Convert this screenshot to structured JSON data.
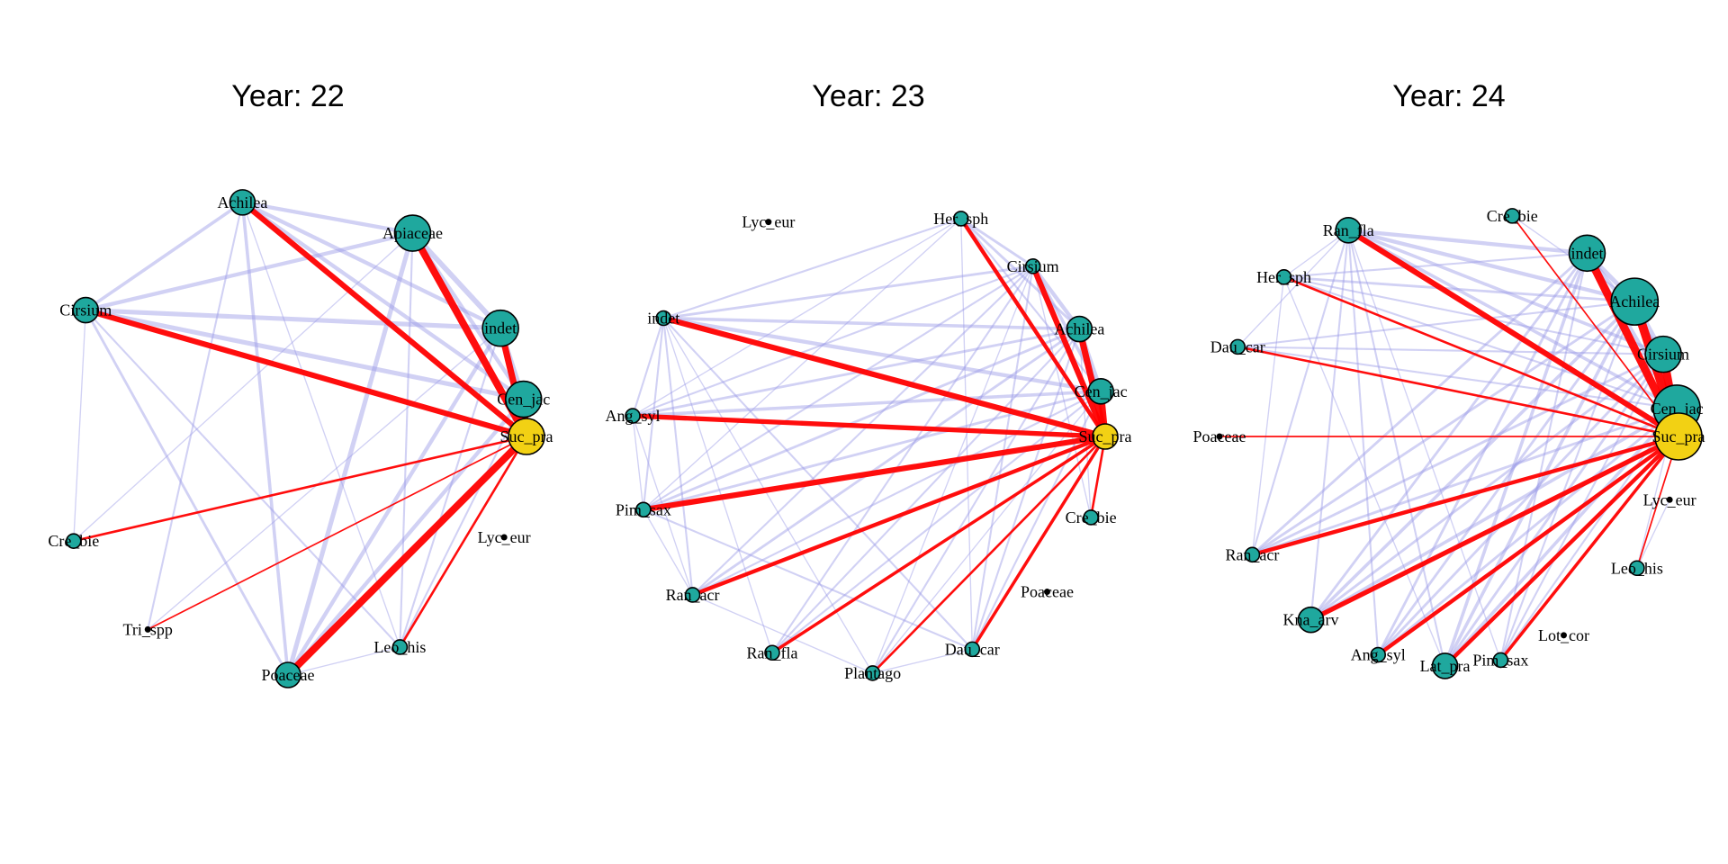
{
  "colors": {
    "background": "#ffffff",
    "edge_weak": "#9a9ae6",
    "edge_focal": "#ff0000",
    "node_fill": "#1fa89e",
    "node_focal_fill": "#f2d114",
    "node_stroke": "#000000"
  },
  "panels": [
    {
      "title": "Year: 22",
      "focal": "Suc_pra",
      "nodes": [
        {
          "id": "Apiaceae",
          "label": "Apiaceae",
          "size": 3
        },
        {
          "id": "indet",
          "label": "indet",
          "size": 3
        },
        {
          "id": "Achilea",
          "label": "Achilea",
          "size": 2
        },
        {
          "id": "Cen_jac",
          "label": "Cen_jac",
          "size": 3
        },
        {
          "id": "Cirsium",
          "label": "Cirsium",
          "size": 2
        },
        {
          "id": "Suc_pra",
          "label": "Suc_pra",
          "size": 3
        },
        {
          "id": "Cre_bie",
          "label": "Cre_bie",
          "size": 1
        },
        {
          "id": "Lyc_eur",
          "label": "Lyc_eur",
          "size": 0
        },
        {
          "id": "Tri_spp",
          "label": "Tri_spp",
          "size": 0
        },
        {
          "id": "Leo_his",
          "label": "Leo_his",
          "size": 1
        },
        {
          "id": "Poaceae",
          "label": "Poaceae",
          "size": 2
        }
      ],
      "edges": [
        {
          "a": "Apiaceae",
          "b": "Suc_pra",
          "w": 8
        },
        {
          "a": "indet",
          "b": "Suc_pra",
          "w": 7
        },
        {
          "a": "Achilea",
          "b": "Suc_pra",
          "w": 6
        },
        {
          "a": "Cen_jac",
          "b": "Suc_pra",
          "w": 7
        },
        {
          "a": "Cirsium",
          "b": "Suc_pra",
          "w": 6
        },
        {
          "a": "Poaceae",
          "b": "Suc_pra",
          "w": 8
        },
        {
          "a": "Cre_bie",
          "b": "Suc_pra",
          "w": 2
        },
        {
          "a": "Tri_spp",
          "b": "Suc_pra",
          "w": 1
        },
        {
          "a": "Leo_his",
          "b": "Suc_pra",
          "w": 2
        },
        {
          "a": "Apiaceae",
          "b": "indet",
          "w": 7
        },
        {
          "a": "Apiaceae",
          "b": "Achilea",
          "w": 5
        },
        {
          "a": "Apiaceae",
          "b": "Cen_jac",
          "w": 5
        },
        {
          "a": "Apiaceae",
          "b": "Cirsium",
          "w": 5
        },
        {
          "a": "Apiaceae",
          "b": "Poaceae",
          "w": 6
        },
        {
          "a": "Apiaceae",
          "b": "Leo_his",
          "w": 2
        },
        {
          "a": "Apiaceae",
          "b": "Cre_bie",
          "w": 1
        },
        {
          "a": "indet",
          "b": "Achilea",
          "w": 5
        },
        {
          "a": "indet",
          "b": "Cen_jac",
          "w": 6
        },
        {
          "a": "indet",
          "b": "Cirsium",
          "w": 6
        },
        {
          "a": "indet",
          "b": "Poaceae",
          "w": 5
        },
        {
          "a": "indet",
          "b": "Leo_his",
          "w": 2
        },
        {
          "a": "indet",
          "b": "Tri_spp",
          "w": 1
        },
        {
          "a": "Achilea",
          "b": "Cen_jac",
          "w": 5
        },
        {
          "a": "Achilea",
          "b": "Cirsium",
          "w": 4
        },
        {
          "a": "Achilea",
          "b": "Poaceae",
          "w": 4
        },
        {
          "a": "Achilea",
          "b": "Leo_his",
          "w": 1
        },
        {
          "a": "Achilea",
          "b": "Tri_spp",
          "w": 2
        },
        {
          "a": "Cen_jac",
          "b": "Cirsium",
          "w": 6
        },
        {
          "a": "Cen_jac",
          "b": "Poaceae",
          "w": 5
        },
        {
          "a": "Cen_jac",
          "b": "Leo_his",
          "w": 2
        },
        {
          "a": "Cirsium",
          "b": "Poaceae",
          "w": 3
        },
        {
          "a": "Cirsium",
          "b": "Leo_his",
          "w": 2
        },
        {
          "a": "Cirsium",
          "b": "Cre_bie",
          "w": 1
        },
        {
          "a": "Poaceae",
          "b": "Leo_his",
          "w": 1
        }
      ]
    },
    {
      "title": "Year: 23",
      "focal": "Suc_pra",
      "nodes": [
        {
          "id": "Her_sph",
          "label": "Her_sph",
          "size": 1
        },
        {
          "id": "Cirsium",
          "label": "Cirsium",
          "size": 1
        },
        {
          "id": "Achilea",
          "label": "Achilea",
          "size": 2
        },
        {
          "id": "Cen_jac",
          "label": "Cen_jac",
          "size": 2
        },
        {
          "id": "Suc_pra",
          "label": "Suc_pra",
          "size": 2
        },
        {
          "id": "Cre_bie",
          "label": "Cre_bie",
          "size": 1
        },
        {
          "id": "Poaceae",
          "label": "Poaceae",
          "size": 0
        },
        {
          "id": "Dau_car",
          "label": "Dau_car",
          "size": 1
        },
        {
          "id": "Plantago",
          "label": "Plantago",
          "size": 1
        },
        {
          "id": "Ran_fla",
          "label": "Ran_fla",
          "size": 1
        },
        {
          "id": "Ran_acr",
          "label": "Ran_acr",
          "size": 1
        },
        {
          "id": "Pim_sax",
          "label": "Pim_sax",
          "size": 1
        },
        {
          "id": "Ang_syl",
          "label": "Ang_syl",
          "size": 1
        },
        {
          "id": "indet",
          "label": "indet",
          "size": 1
        },
        {
          "id": "Lyc_eur",
          "label": "Lyc_eur",
          "size": 0
        }
      ],
      "edges": [
        {
          "a": "Her_sph",
          "b": "Suc_pra",
          "w": 4
        },
        {
          "a": "Cirsium",
          "b": "Suc_pra",
          "w": 6
        },
        {
          "a": "Achilea",
          "b": "Suc_pra",
          "w": 7
        },
        {
          "a": "Cen_jac",
          "b": "Suc_pra",
          "w": 7
        },
        {
          "a": "indet",
          "b": "Suc_pra",
          "w": 6
        },
        {
          "a": "Ang_syl",
          "b": "Suc_pra",
          "w": 5
        },
        {
          "a": "Pim_sax",
          "b": "Suc_pra",
          "w": 6
        },
        {
          "a": "Ran_acr",
          "b": "Suc_pra",
          "w": 4
        },
        {
          "a": "Ran_fla",
          "b": "Suc_pra",
          "w": 3
        },
        {
          "a": "Plantago",
          "b": "Suc_pra",
          "w": 2
        },
        {
          "a": "Dau_car",
          "b": "Suc_pra",
          "w": 3
        },
        {
          "a": "Cre_bie",
          "b": "Suc_pra",
          "w": 2
        },
        {
          "a": "Cirsium",
          "b": "Achilea",
          "w": 5
        },
        {
          "a": "Cirsium",
          "b": "Cen_jac",
          "w": 4
        },
        {
          "a": "Achilea",
          "b": "Cen_jac",
          "w": 6
        },
        {
          "a": "Her_sph",
          "b": "Cirsium",
          "w": 3
        },
        {
          "a": "Her_sph",
          "b": "Achilea",
          "w": 3
        },
        {
          "a": "Her_sph",
          "b": "indet",
          "w": 2
        },
        {
          "a": "Her_sph",
          "b": "Ang_syl",
          "w": 1
        },
        {
          "a": "Her_sph",
          "b": "Pim_sax",
          "w": 1
        },
        {
          "a": "Her_sph",
          "b": "Cen_jac",
          "w": 2
        },
        {
          "a": "Her_sph",
          "b": "Dau_car",
          "w": 1
        },
        {
          "a": "indet",
          "b": "Cirsium",
          "w": 3
        },
        {
          "a": "indet",
          "b": "Achilea",
          "w": 4
        },
        {
          "a": "indet",
          "b": "Cen_jac",
          "w": 5
        },
        {
          "a": "indet",
          "b": "Ang_syl",
          "w": 2
        },
        {
          "a": "indet",
          "b": "Pim_sax",
          "w": 2
        },
        {
          "a": "indet",
          "b": "Ran_acr",
          "w": 2
        },
        {
          "a": "indet",
          "b": "Ran_fla",
          "w": 1
        },
        {
          "a": "indet",
          "b": "Dau_car",
          "w": 2
        },
        {
          "a": "indet",
          "b": "Plantago",
          "w": 1
        },
        {
          "a": "Ang_syl",
          "b": "Cirsium",
          "w": 2
        },
        {
          "a": "Ang_syl",
          "b": "Achilea",
          "w": 3
        },
        {
          "a": "Ang_syl",
          "b": "Cen_jac",
          "w": 4
        },
        {
          "a": "Ang_syl",
          "b": "Pim_sax",
          "w": 1
        },
        {
          "a": "Ang_syl",
          "b": "Ran_acr",
          "w": 1
        },
        {
          "a": "Pim_sax",
          "b": "Cirsium",
          "w": 2
        },
        {
          "a": "Pim_sax",
          "b": "Achilea",
          "w": 3
        },
        {
          "a": "Pim_sax",
          "b": "Cen_jac",
          "w": 3
        },
        {
          "a": "Pim_sax",
          "b": "Ran_acr",
          "w": 1
        },
        {
          "a": "Pim_sax",
          "b": "Dau_car",
          "w": 2
        },
        {
          "a": "Ran_acr",
          "b": "Cirsium",
          "w": 2
        },
        {
          "a": "Ran_acr",
          "b": "Achilea",
          "w": 3
        },
        {
          "a": "Ran_acr",
          "b": "Cen_jac",
          "w": 2
        },
        {
          "a": "Ran_acr",
          "b": "Plantago",
          "w": 1
        },
        {
          "a": "Ran_fla",
          "b": "Cirsium",
          "w": 2
        },
        {
          "a": "Ran_fla",
          "b": "Achilea",
          "w": 2
        },
        {
          "a": "Ran_fla",
          "b": "Cen_jac",
          "w": 2
        },
        {
          "a": "Plantago",
          "b": "Cirsium",
          "w": 1
        },
        {
          "a": "Plantago",
          "b": "Achilea",
          "w": 2
        },
        {
          "a": "Plantago",
          "b": "Cen_jac",
          "w": 1
        },
        {
          "a": "Plantago",
          "b": "Dau_car",
          "w": 1
        },
        {
          "a": "Dau_car",
          "b": "Cirsium",
          "w": 2
        },
        {
          "a": "Dau_car",
          "b": "Achilea",
          "w": 2
        },
        {
          "a": "Dau_car",
          "b": "Cen_jac",
          "w": 2
        },
        {
          "a": "Cre_bie",
          "b": "Achilea",
          "w": 1
        },
        {
          "a": "Cre_bie",
          "b": "Cirsium",
          "w": 1
        }
      ]
    },
    {
      "title": "Year: 24",
      "focal": "Suc_pra",
      "nodes": [
        {
          "id": "Cre_bie",
          "label": "Cre_bie",
          "size": 1
        },
        {
          "id": "indet",
          "label": "indet",
          "size": 3
        },
        {
          "id": "Achilea",
          "label": "Achilea",
          "size": 4
        },
        {
          "id": "Cirsium",
          "label": "Cirsium",
          "size": 3
        },
        {
          "id": "Cen_jac",
          "label": "Cen_jac",
          "size": 4
        },
        {
          "id": "Suc_pra",
          "label": "Suc_pra",
          "size": 4
        },
        {
          "id": "Lyc_eur",
          "label": "Lyc_eur",
          "size": 0
        },
        {
          "id": "Leo_his",
          "label": "Leo_his",
          "size": 1
        },
        {
          "id": "Lot_cor",
          "label": "Lot_cor",
          "size": 0
        },
        {
          "id": "Pim_sax",
          "label": "Pim_sax",
          "size": 1
        },
        {
          "id": "Lat_pra",
          "label": "Lat_pra",
          "size": 2
        },
        {
          "id": "Ang_syl",
          "label": "Ang_syl",
          "size": 1
        },
        {
          "id": "Kna_arv",
          "label": "Kna_arv",
          "size": 2
        },
        {
          "id": "Ran_acr",
          "label": "Ran_acr",
          "size": 1
        },
        {
          "id": "Poaceae",
          "label": "Poaceae",
          "size": 0
        },
        {
          "id": "Dau_car",
          "label": "Dau_car",
          "size": 1
        },
        {
          "id": "Her_sph",
          "label": "Her_sph",
          "size": 1
        },
        {
          "id": "Ran_fla",
          "label": "Ran_fla",
          "size": 2
        }
      ],
      "edges": [
        {
          "a": "indet",
          "b": "Suc_pra",
          "w": 9
        },
        {
          "a": "Achilea",
          "b": "Suc_pra",
          "w": 10
        },
        {
          "a": "Cirsium",
          "b": "Suc_pra",
          "w": 9
        },
        {
          "a": "Cen_jac",
          "b": "Suc_pra",
          "w": 9
        },
        {
          "a": "Ran_fla",
          "b": "Suc_pra",
          "w": 6
        },
        {
          "a": "Cre_bie",
          "b": "Suc_pra",
          "w": 1
        },
        {
          "a": "Her_sph",
          "b": "Suc_pra",
          "w": 2
        },
        {
          "a": "Dau_car",
          "b": "Suc_pra",
          "w": 2
        },
        {
          "a": "Poaceae",
          "b": "Suc_pra",
          "w": 1
        },
        {
          "a": "Ran_acr",
          "b": "Suc_pra",
          "w": 4
        },
        {
          "a": "Kna_arv",
          "b": "Suc_pra",
          "w": 5
        },
        {
          "a": "Ang_syl",
          "b": "Suc_pra",
          "w": 4
        },
        {
          "a": "Lat_pra",
          "b": "Suc_pra",
          "w": 4
        },
        {
          "a": "Pim_sax",
          "b": "Suc_pra",
          "w": 3
        },
        {
          "a": "Leo_his",
          "b": "Suc_pra",
          "w": 1
        },
        {
          "a": "indet",
          "b": "Achilea",
          "w": 6
        },
        {
          "a": "indet",
          "b": "Cirsium",
          "w": 5
        },
        {
          "a": "indet",
          "b": "Cen_jac",
          "w": 5
        },
        {
          "a": "Achilea",
          "b": "Cirsium",
          "w": 6
        },
        {
          "a": "Achilea",
          "b": "Cen_jac",
          "w": 6
        },
        {
          "a": "Cirsium",
          "b": "Cen_jac",
          "w": 5
        },
        {
          "a": "Ran_fla",
          "b": "indet",
          "w": 5
        },
        {
          "a": "Ran_fla",
          "b": "Achilea",
          "w": 5
        },
        {
          "a": "Ran_fla",
          "b": "Cirsium",
          "w": 4
        },
        {
          "a": "Ran_fla",
          "b": "Cen_jac",
          "w": 4
        },
        {
          "a": "Her_sph",
          "b": "indet",
          "w": 2
        },
        {
          "a": "Her_sph",
          "b": "Achilea",
          "w": 3
        },
        {
          "a": "Her_sph",
          "b": "Cirsium",
          "w": 2
        },
        {
          "a": "Her_sph",
          "b": "Cen_jac",
          "w": 2
        },
        {
          "a": "Her_sph",
          "b": "Ran_fla",
          "w": 1
        },
        {
          "a": "Dau_car",
          "b": "Cen_jac",
          "w": 2
        },
        {
          "a": "Dau_car",
          "b": "Cirsium",
          "w": 2
        },
        {
          "a": "Dau_car",
          "b": "Achilea",
          "w": 2
        },
        {
          "a": "Dau_car",
          "b": "Ran_fla",
          "w": 1
        },
        {
          "a": "Ran_acr",
          "b": "indet",
          "w": 3
        },
        {
          "a": "Ran_acr",
          "b": "Achilea",
          "w": 3
        },
        {
          "a": "Ran_acr",
          "b": "Cirsium",
          "w": 3
        },
        {
          "a": "Ran_acr",
          "b": "Cen_jac",
          "w": 3
        },
        {
          "a": "Ran_acr",
          "b": "Ran_fla",
          "w": 2
        },
        {
          "a": "Ran_acr",
          "b": "Her_sph",
          "w": 1
        },
        {
          "a": "Kna_arv",
          "b": "indet",
          "w": 3
        },
        {
          "a": "Kna_arv",
          "b": "Achilea",
          "w": 4
        },
        {
          "a": "Kna_arv",
          "b": "Cirsium",
          "w": 3
        },
        {
          "a": "Kna_arv",
          "b": "Cen_jac",
          "w": 4
        },
        {
          "a": "Kna_arv",
          "b": "Ran_fla",
          "w": 2
        },
        {
          "a": "Ang_syl",
          "b": "indet",
          "w": 3
        },
        {
          "a": "Ang_syl",
          "b": "Achilea",
          "w": 3
        },
        {
          "a": "Ang_syl",
          "b": "Cirsium",
          "w": 3
        },
        {
          "a": "Ang_syl",
          "b": "Cen_jac",
          "w": 3
        },
        {
          "a": "Ang_syl",
          "b": "Ran_fla",
          "w": 2
        },
        {
          "a": "Lat_pra",
          "b": "indet",
          "w": 4
        },
        {
          "a": "Lat_pra",
          "b": "Achilea",
          "w": 4
        },
        {
          "a": "Lat_pra",
          "b": "Cirsium",
          "w": 3
        },
        {
          "a": "Lat_pra",
          "b": "Cen_jac",
          "w": 4
        },
        {
          "a": "Lat_pra",
          "b": "Ran_fla",
          "w": 2
        },
        {
          "a": "Lat_pra",
          "b": "Her_sph",
          "w": 1
        },
        {
          "a": "Pim_sax",
          "b": "indet",
          "w": 2
        },
        {
          "a": "Pim_sax",
          "b": "Achilea",
          "w": 2
        },
        {
          "a": "Pim_sax",
          "b": "Cirsium",
          "w": 2
        },
        {
          "a": "Pim_sax",
          "b": "Cen_jac",
          "w": 2
        },
        {
          "a": "Pim_sax",
          "b": "Ran_fla",
          "w": 1
        },
        {
          "a": "Leo_his",
          "b": "Lyc_eur",
          "w": 1
        },
        {
          "a": "Leo_his",
          "b": "Cen_jac",
          "w": 1
        },
        {
          "a": "Cre_bie",
          "b": "Achilea",
          "w": 1
        }
      ]
    }
  ]
}
